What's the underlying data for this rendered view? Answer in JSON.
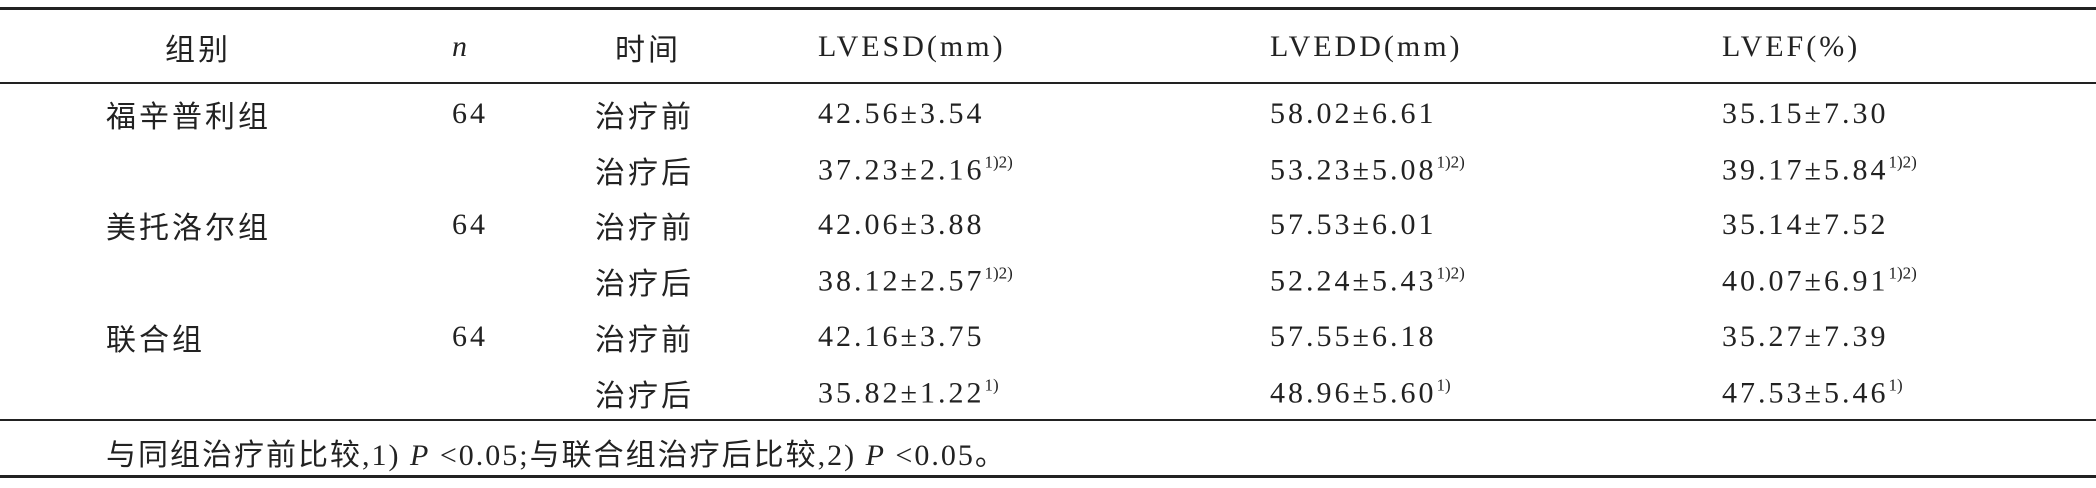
{
  "table": {
    "header": [
      "组别",
      "n",
      "时间",
      "LVESD(mm)",
      "LVEDD(mm)",
      "LVEF(%)"
    ],
    "rows": [
      [
        "福辛普利组",
        "64",
        "治疗前",
        {
          "text": "42.56±3.54",
          "sup": null
        },
        {
          "text": "58.02±6.61",
          "sup": null
        },
        {
          "text": "35.15±7.30",
          "sup": null
        }
      ],
      [
        null,
        null,
        "治疗后",
        {
          "text": "37.23±2.16",
          "sup": "1)2)"
        },
        {
          "text": "53.23±5.08",
          "sup": "1)2)"
        },
        {
          "text": "39.17±5.84",
          "sup": "1)2)"
        }
      ],
      [
        "美托洛尔组",
        "64",
        "治疗前",
        {
          "text": "42.06±3.88",
          "sup": null
        },
        {
          "text": "57.53±6.01",
          "sup": null
        },
        {
          "text": "35.14±7.52",
          "sup": null
        }
      ],
      [
        null,
        null,
        "治疗后",
        {
          "text": "38.12±2.57",
          "sup": "1)2)"
        },
        {
          "text": "52.24±5.43",
          "sup": "1)2)"
        },
        {
          "text": "40.07±6.91",
          "sup": "1)2)"
        }
      ],
      [
        "联合组",
        "64",
        "治疗前",
        {
          "text": "42.16±3.75",
          "sup": null
        },
        {
          "text": "57.55±6.18",
          "sup": null
        },
        {
          "text": "35.27±7.39",
          "sup": null
        }
      ],
      [
        null,
        null,
        "治疗后",
        {
          "text": "35.82±1.22",
          "sup": "1)"
        },
        {
          "text": "48.96±5.60",
          "sup": "1)"
        },
        {
          "text": "47.53±5.46",
          "sup": "1)"
        }
      ]
    ],
    "note": [
      "与同组治疗前比较,1) ",
      "P",
      " <0.05;与联合组治疗后比较,2) ",
      "P",
      " <0.05。"
    ]
  }
}
